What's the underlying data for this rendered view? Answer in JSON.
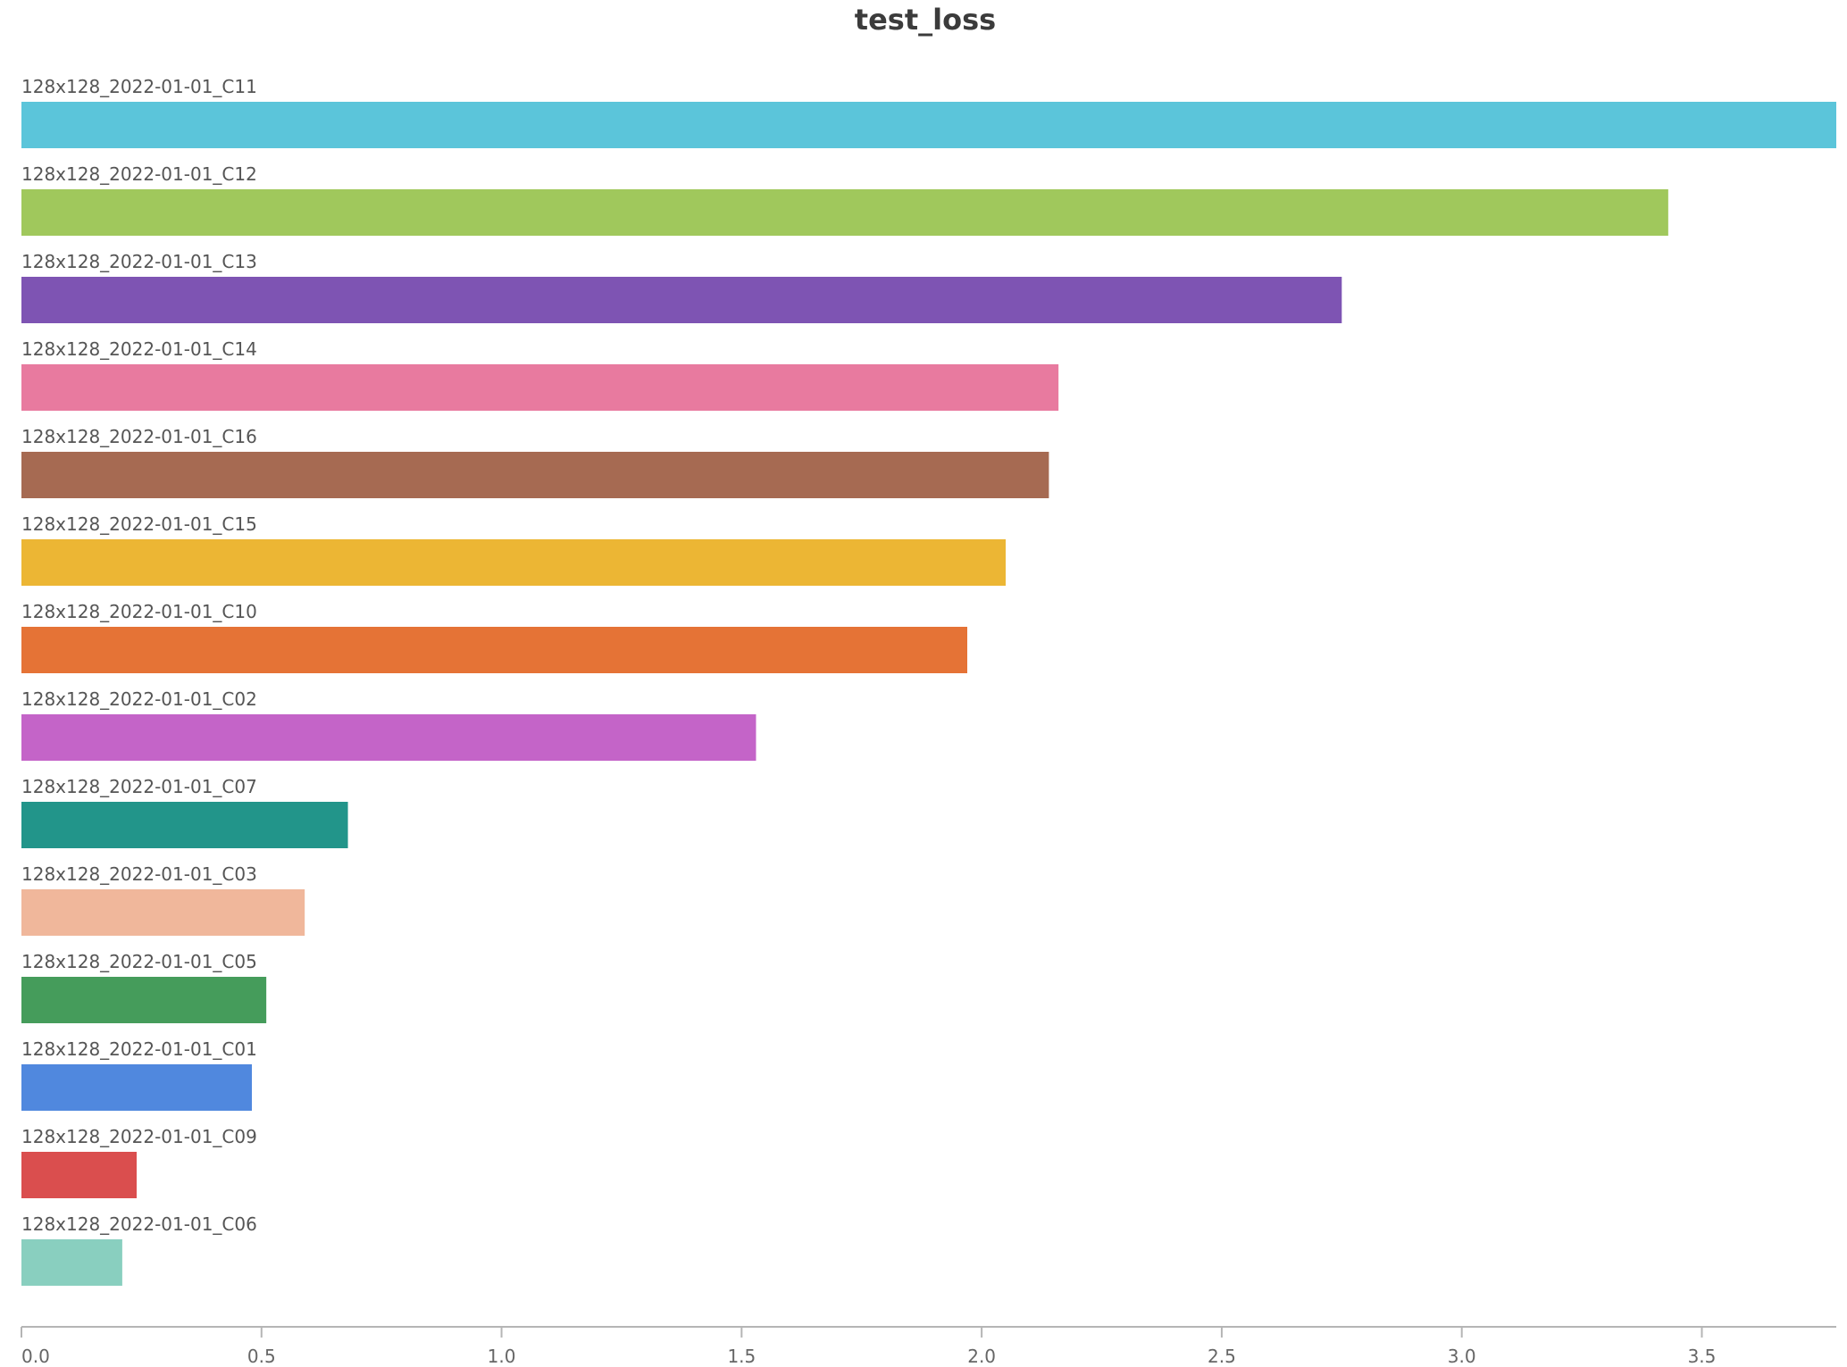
{
  "chart_data": {
    "type": "bar",
    "orientation": "horizontal",
    "title": "test_loss",
    "xlabel": "",
    "ylabel": "",
    "xlim": [
      0,
      3.78
    ],
    "xticks": [
      "0.0",
      "0.5",
      "1.0",
      "1.5",
      "2.0",
      "2.5",
      "3.0",
      "3.5"
    ],
    "grid": false,
    "categories": [
      "128x128_2022-01-01_C11",
      "128x128_2022-01-01_C12",
      "128x128_2022-01-01_C13",
      "128x128_2022-01-01_C14",
      "128x128_2022-01-01_C16",
      "128x128_2022-01-01_C15",
      "128x128_2022-01-01_C10",
      "128x128_2022-01-01_C02",
      "128x128_2022-01-01_C07",
      "128x128_2022-01-01_C03",
      "128x128_2022-01-01_C05",
      "128x128_2022-01-01_C01",
      "128x128_2022-01-01_C09",
      "128x128_2022-01-01_C06"
    ],
    "values": [
      3.78,
      3.43,
      2.75,
      2.16,
      2.14,
      2.05,
      1.97,
      1.53,
      0.68,
      0.59,
      0.51,
      0.48,
      0.24,
      0.21
    ],
    "colors": [
      "#5bc5da",
      "#a0c85c",
      "#7e54b3",
      "#e87a9f",
      "#a66a52",
      "#ecb634",
      "#e57336",
      "#c464c8",
      "#22958a",
      "#f0b79b",
      "#459c5b",
      "#5088de",
      "#da4e4e",
      "#89cfbf"
    ]
  }
}
